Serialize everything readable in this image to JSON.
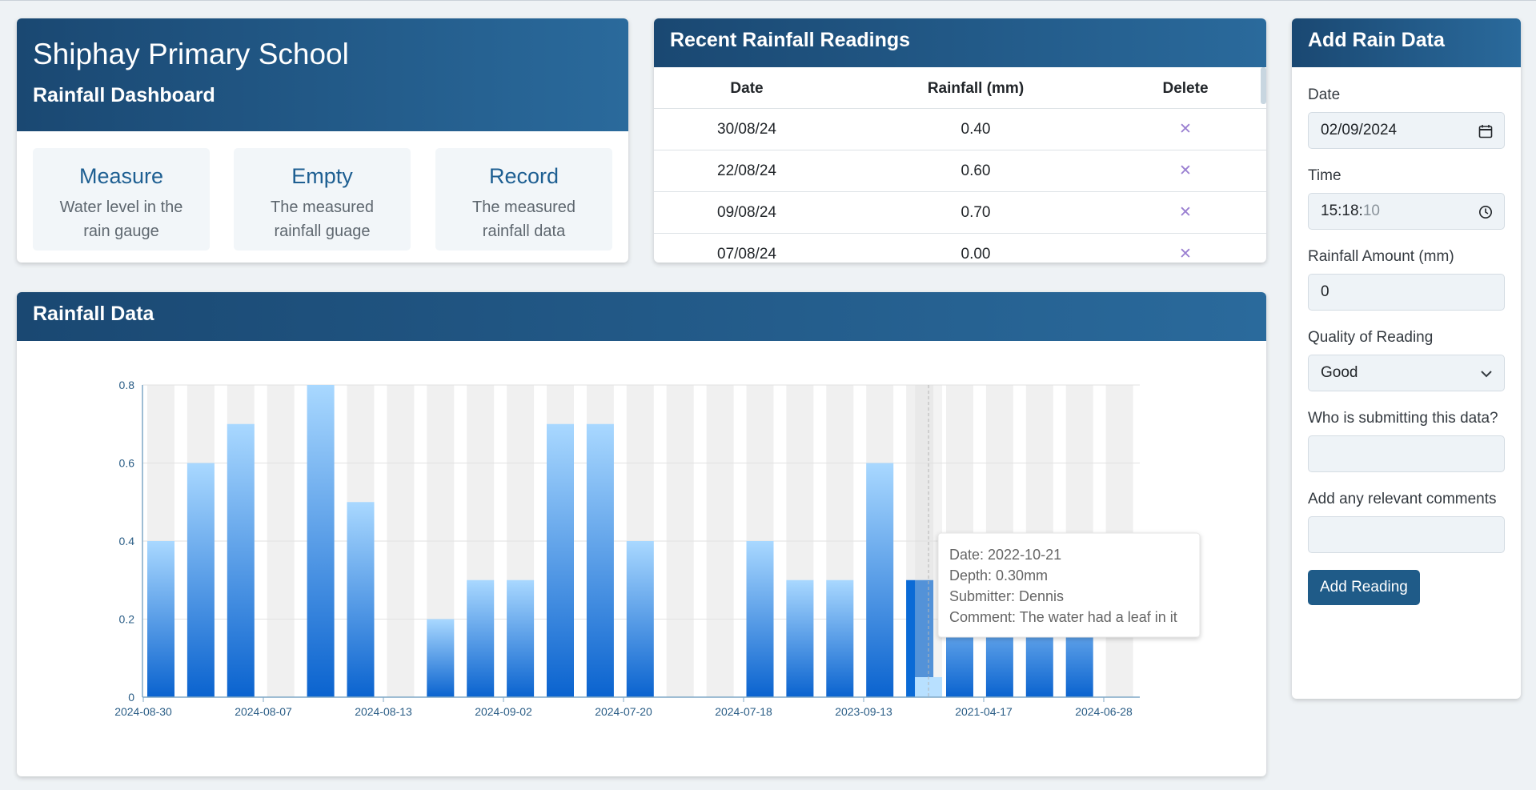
{
  "school": {
    "name": "Shiphay Primary School",
    "subtitle": "Rainfall Dashboard",
    "steps": [
      {
        "title": "Measure",
        "desc": "Water level in the rain gauge"
      },
      {
        "title": "Empty",
        "desc": "The measured rainfall guage"
      },
      {
        "title": "Record",
        "desc": "The measured rainfall data"
      }
    ]
  },
  "readings": {
    "title": "Recent Rainfall Readings",
    "headers": {
      "date": "Date",
      "rain": "Rainfall (mm)",
      "del": "Delete"
    },
    "delete_symbol": "✕",
    "rows": [
      {
        "date": "30/08/24",
        "rain": "0.40"
      },
      {
        "date": "22/08/24",
        "rain": "0.60"
      },
      {
        "date": "09/08/24",
        "rain": "0.70"
      },
      {
        "date": "07/08/24",
        "rain": "0.00"
      }
    ]
  },
  "chart_panel": {
    "title": "Rainfall Data"
  },
  "chart_data": {
    "type": "bar",
    "ylim": [
      0,
      0.8
    ],
    "yticks": [
      "0",
      "0.2",
      "0.4",
      "0.6",
      "0.8"
    ],
    "values": [
      0.4,
      0.6,
      0.7,
      0,
      0.8,
      0.5,
      0,
      0.2,
      0.3,
      0.3,
      0.7,
      0.7,
      0.4,
      0,
      0,
      0.4,
      0.3,
      0.3,
      0.6,
      0.3,
      0.3,
      0.3,
      0.3,
      0.3,
      0
    ],
    "highlight_index": 19,
    "xtick_labels": [
      "2024-08-30",
      "2024-08-07",
      "2024-08-13",
      "2024-09-02",
      "2024-07-20",
      "2024-07-18",
      "2023-09-13",
      "2021-04-17",
      "2024-06-28"
    ],
    "tooltip": {
      "date": "Date: 2022-10-21",
      "depth": "Depth: 0.30mm",
      "submitter": "Submitter: Dennis",
      "comment": "Comment: The water had a leaf in it"
    },
    "colors": {
      "bar_top": "#a9d8ff",
      "bar_bottom": "#0a63cf",
      "band": "#f0f0f0",
      "highlight": "#0a6ad6"
    }
  },
  "form": {
    "title": "Add Rain Data",
    "date_label": "Date",
    "date_value": "02/09/2024",
    "date_icon": "calendar-icon",
    "time_label": "Time",
    "time_value": "15:18:",
    "time_seconds": "10",
    "time_icon": "clock-icon",
    "rain_label": "Rainfall Amount (mm)",
    "rain_value": "0",
    "quality_label": "Quality of Reading",
    "quality_value": "Good",
    "submitter_label": "Who is submitting this data?",
    "submitter_value": "",
    "comments_label": "Add any relevant comments",
    "comments_value": "",
    "button_label": "Add Reading"
  }
}
